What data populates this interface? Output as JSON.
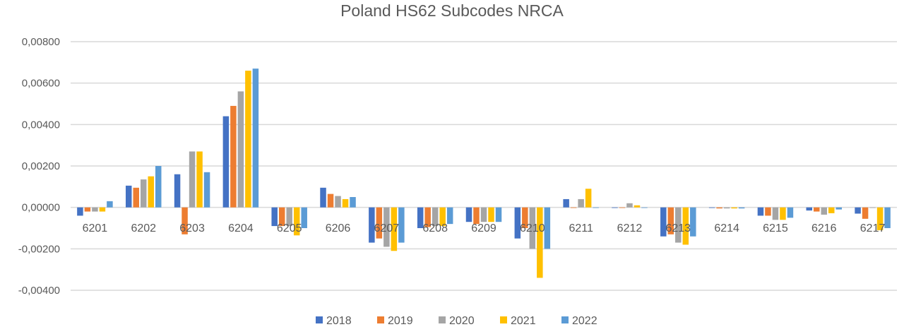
{
  "chart_data": {
    "type": "bar",
    "title": "Poland HS62 Subcodes NRCA",
    "xlabel": "",
    "ylabel": "",
    "ylim": [
      -0.004,
      0.008
    ],
    "yticks": [
      0.008,
      0.006,
      0.004,
      0.002,
      0,
      -0.002,
      -0.004
    ],
    "ytick_labels": [
      "0,00800",
      "0,00600",
      "0,00400",
      "0,00200",
      "0,00000",
      "-0,00200",
      "-0,00400"
    ],
    "grid": true,
    "legend": "bottom",
    "categories": [
      "6201",
      "6202",
      "6203",
      "6204",
      "6205",
      "6206",
      "6207",
      "6208",
      "6209",
      "6210",
      "6211",
      "6212",
      "6213",
      "6214",
      "6215",
      "6216",
      "6217"
    ],
    "series": [
      {
        "name": "2018",
        "color": "#4472C4",
        "values": [
          -0.0004,
          0.00105,
          0.0016,
          0.0044,
          -0.0009,
          0.00095,
          -0.0017,
          -0.001,
          -0.0007,
          -0.0015,
          0.0004,
          0,
          -0.0014,
          0,
          -0.0004,
          -0.00015,
          -0.0003
        ]
      },
      {
        "name": "2019",
        "color": "#ED7D31",
        "values": [
          -0.0002,
          0.00095,
          -0.0013,
          0.0049,
          -0.0009,
          0.00065,
          -0.0015,
          -0.00095,
          -0.0008,
          -0.001,
          0,
          0,
          -0.0013,
          -5e-05,
          -0.0004,
          -0.0002,
          -0.00055
        ]
      },
      {
        "name": "2020",
        "color": "#A5A5A5",
        "values": [
          -0.0002,
          0.00135,
          0.0027,
          0.0056,
          -0.0009,
          0.00055,
          -0.0019,
          -0.0009,
          -0.0007,
          -0.002,
          0.0004,
          0.0002,
          -0.0017,
          -5e-05,
          -0.0006,
          -0.00035,
          0
        ]
      },
      {
        "name": "2021",
        "color": "#FFC000",
        "values": [
          -0.0002,
          0.0015,
          0.0027,
          0.0066,
          -0.00135,
          0.0004,
          -0.0021,
          -0.0009,
          -0.0007,
          -0.0034,
          0.0009,
          0.0001,
          -0.0018,
          -5e-05,
          -0.0006,
          -0.00028,
          -0.0011
        ]
      },
      {
        "name": "2022",
        "color": "#5B9BD5",
        "values": [
          0.0003,
          0.002,
          0.0017,
          0.0067,
          -0.001,
          0.0005,
          -0.0017,
          -0.0008,
          -0.0007,
          -0.002,
          0,
          0,
          -0.0014,
          -5e-05,
          -0.0005,
          -0.0001,
          -0.001
        ]
      }
    ]
  }
}
